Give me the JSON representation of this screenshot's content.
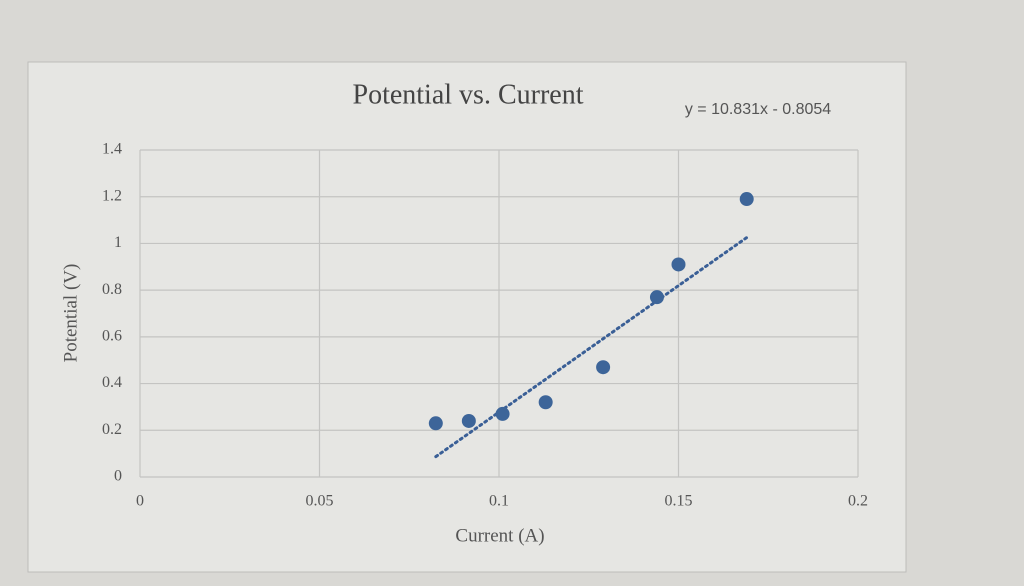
{
  "chart_data": {
    "type": "scatter",
    "title": "Potential vs. Current",
    "x_label": "Current (A)",
    "y_label": "Potential (V)",
    "x": [
      0.0824,
      0.0916,
      0.101,
      0.113,
      0.129,
      0.144,
      0.15,
      0.169
    ],
    "series": [
      {
        "name": "Potential",
        "color": "#3d6599",
        "values": [
          0.23,
          0.24,
          0.27,
          0.32,
          0.47,
          0.77,
          0.91,
          1.19
        ]
      }
    ],
    "trendline": {
      "label": "y = 10.831x - 0.8054",
      "slope": 10.831,
      "intercept": -0.8054,
      "color": "#3a5f96"
    },
    "xlim": [
      0,
      0.2
    ],
    "xticks": [
      0,
      0.05,
      0.1,
      0.15,
      0.2
    ],
    "ylim": [
      0,
      1.4
    ],
    "yticks": [
      0,
      0.2,
      0.4,
      0.6,
      0.8,
      1,
      1.2,
      1.4
    ],
    "grid": true,
    "legend": false
  }
}
